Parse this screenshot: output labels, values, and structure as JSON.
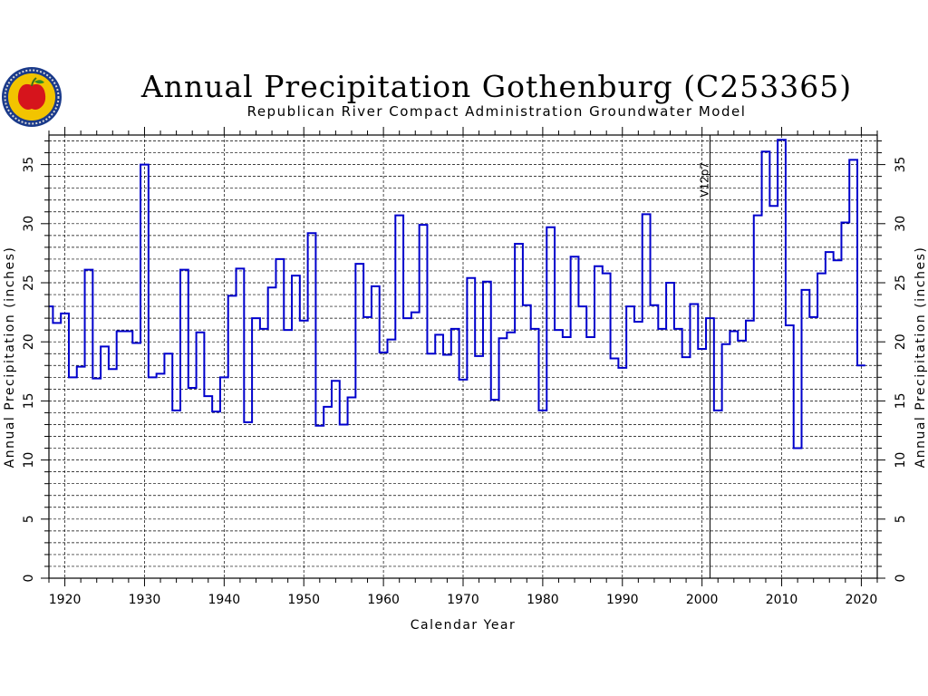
{
  "chart_data": {
    "type": "line",
    "step": "centered",
    "title": "Annual Precipitation Gothenburg (C253365)",
    "subtitle": "Republican River Compact Administration Groundwater Model",
    "xlabel": "Calendar Year",
    "ylabel_left": "Annual Precipitation (inches)",
    "ylabel_right": "Annual Precipitation (inches)",
    "xlim": [
      1918,
      2022
    ],
    "ylim": [
      0,
      37.5
    ],
    "x_ticks": [
      1920,
      1930,
      1940,
      1950,
      1960,
      1970,
      1980,
      1990,
      2000,
      2010,
      2020
    ],
    "y_ticks": [
      0,
      5,
      10,
      15,
      20,
      25,
      30,
      35
    ],
    "grid": "dashed",
    "annotation": {
      "year": 2001,
      "label": "V12p7"
    },
    "series": [
      {
        "color": "#0000cc",
        "x": [
          1918,
          1919,
          1920,
          1921,
          1922,
          1923,
          1924,
          1925,
          1926,
          1927,
          1928,
          1929,
          1930,
          1931,
          1932,
          1933,
          1934,
          1935,
          1936,
          1937,
          1938,
          1939,
          1940,
          1941,
          1942,
          1943,
          1944,
          1945,
          1946,
          1947,
          1948,
          1949,
          1950,
          1951,
          1952,
          1953,
          1954,
          1955,
          1956,
          1957,
          1958,
          1959,
          1960,
          1961,
          1962,
          1963,
          1964,
          1965,
          1966,
          1967,
          1968,
          1969,
          1970,
          1971,
          1972,
          1973,
          1974,
          1975,
          1976,
          1977,
          1978,
          1979,
          1980,
          1981,
          1982,
          1983,
          1984,
          1985,
          1986,
          1987,
          1988,
          1989,
          1990,
          1991,
          1992,
          1993,
          1994,
          1995,
          1996,
          1997,
          1998,
          1999,
          2000,
          2001,
          2002,
          2003,
          2004,
          2005,
          2006,
          2007,
          2008,
          2009,
          2010,
          2011,
          2012,
          2013,
          2014,
          2015,
          2016,
          2017,
          2018,
          2019,
          2020
        ],
        "y": [
          23.0,
          21.6,
          22.4,
          17.0,
          17.9,
          26.1,
          16.9,
          19.6,
          17.7,
          20.9,
          20.9,
          19.9,
          35.0,
          17.0,
          17.3,
          19.0,
          14.2,
          26.1,
          16.1,
          20.8,
          15.4,
          14.1,
          17.0,
          23.9,
          26.2,
          13.2,
          22.0,
          21.1,
          24.6,
          27.0,
          21.0,
          25.6,
          21.8,
          29.2,
          12.9,
          14.5,
          16.7,
          13.0,
          15.3,
          26.6,
          22.1,
          24.7,
          19.1,
          20.2,
          30.7,
          22.0,
          22.5,
          29.9,
          19.0,
          20.6,
          18.9,
          21.1,
          16.8,
          25.4,
          18.8,
          25.1,
          15.1,
          20.3,
          20.8,
          28.3,
          23.1,
          21.1,
          14.2,
          29.7,
          21.0,
          20.4,
          27.2,
          23.0,
          20.4,
          26.4,
          25.8,
          18.6,
          17.8,
          23.0,
          21.7,
          30.8,
          23.1,
          21.1,
          25.0,
          21.1,
          18.7,
          23.2,
          19.4,
          22.0,
          14.2,
          19.8,
          20.9,
          20.1,
          21.8,
          30.7,
          36.1,
          31.5,
          37.1,
          21.4,
          11.0,
          24.4,
          22.1,
          25.8,
          27.6,
          26.9,
          30.1,
          35.4,
          18.0
        ]
      }
    ]
  },
  "logo": {
    "name": "Republican River Compact Administration seal"
  }
}
